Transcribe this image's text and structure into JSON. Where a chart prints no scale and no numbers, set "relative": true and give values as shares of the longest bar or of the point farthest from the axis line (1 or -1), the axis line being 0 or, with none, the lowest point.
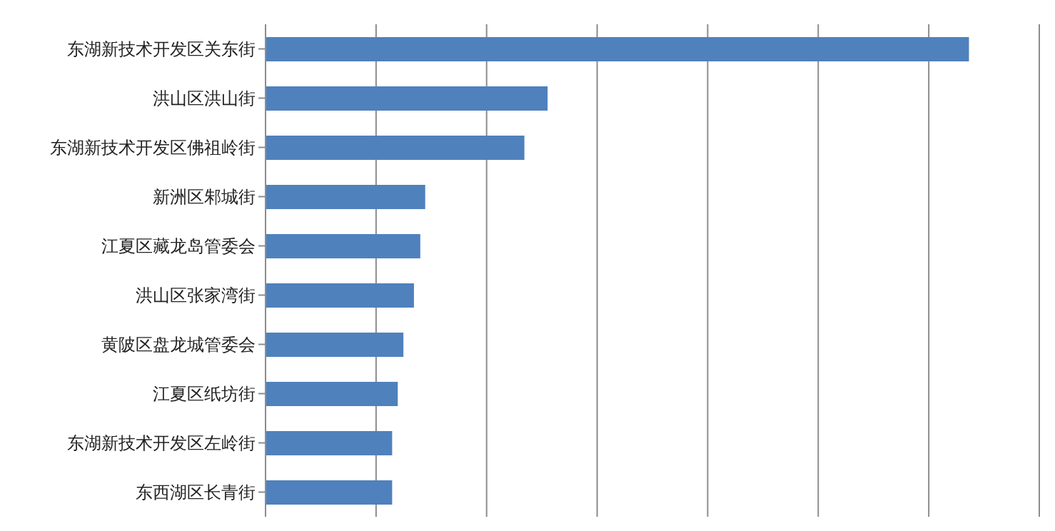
{
  "chart_data": {
    "type": "bar",
    "orientation": "horizontal",
    "relative": true,
    "grid": "x",
    "categories": [
      "东湖新技术开发区关东街",
      "洪山区洪山街",
      "东湖新技术开发区佛祖岭街",
      "新洲区邾城街",
      "江夏区藏龙岛管委会",
      "洪山区张家湾街",
      "黄陂区盘龙城管委会",
      "江夏区纸坊街",
      "东湖新技术开发区左岭街",
      "东西湖区长青街"
    ],
    "values": [
      1,
      0.401,
      0.368,
      0.227,
      0.22,
      0.211,
      0.196,
      0.188,
      0.18,
      0.18
    ],
    "color": "#4f81bd"
  }
}
